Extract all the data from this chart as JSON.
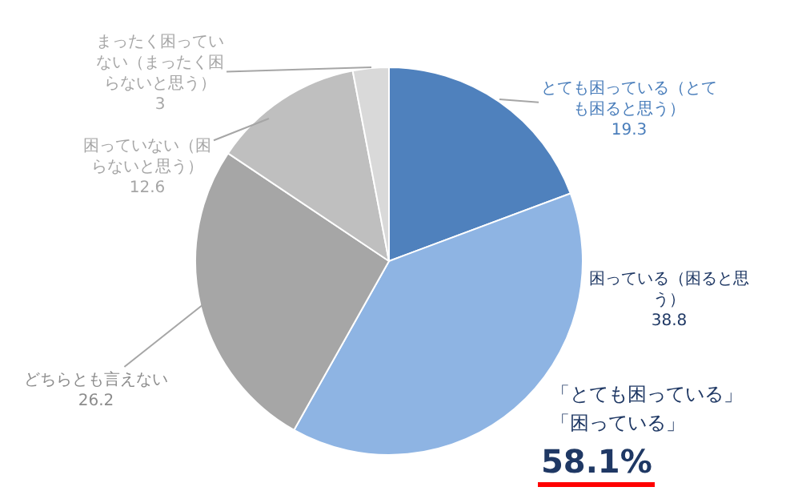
{
  "chart_data": {
    "type": "pie",
    "categories": [
      "とても困っている（とても困ると思う）",
      "困っている（困ると思う）",
      "どちらとも言えない",
      "困っていない（困らないと思う）",
      "まったく困っていない（まったく困らないと思う）"
    ],
    "values": [
      19.3,
      38.8,
      26.2,
      12.6,
      3
    ],
    "colors": [
      "#4f81bd",
      "#8eb4e3",
      "#a6a6a6",
      "#bfbfbf",
      "#d9d9d9"
    ],
    "data_labels": true,
    "annotations": [
      "「とても困っている」",
      "「困っている」",
      "58.1%"
    ]
  }
}
